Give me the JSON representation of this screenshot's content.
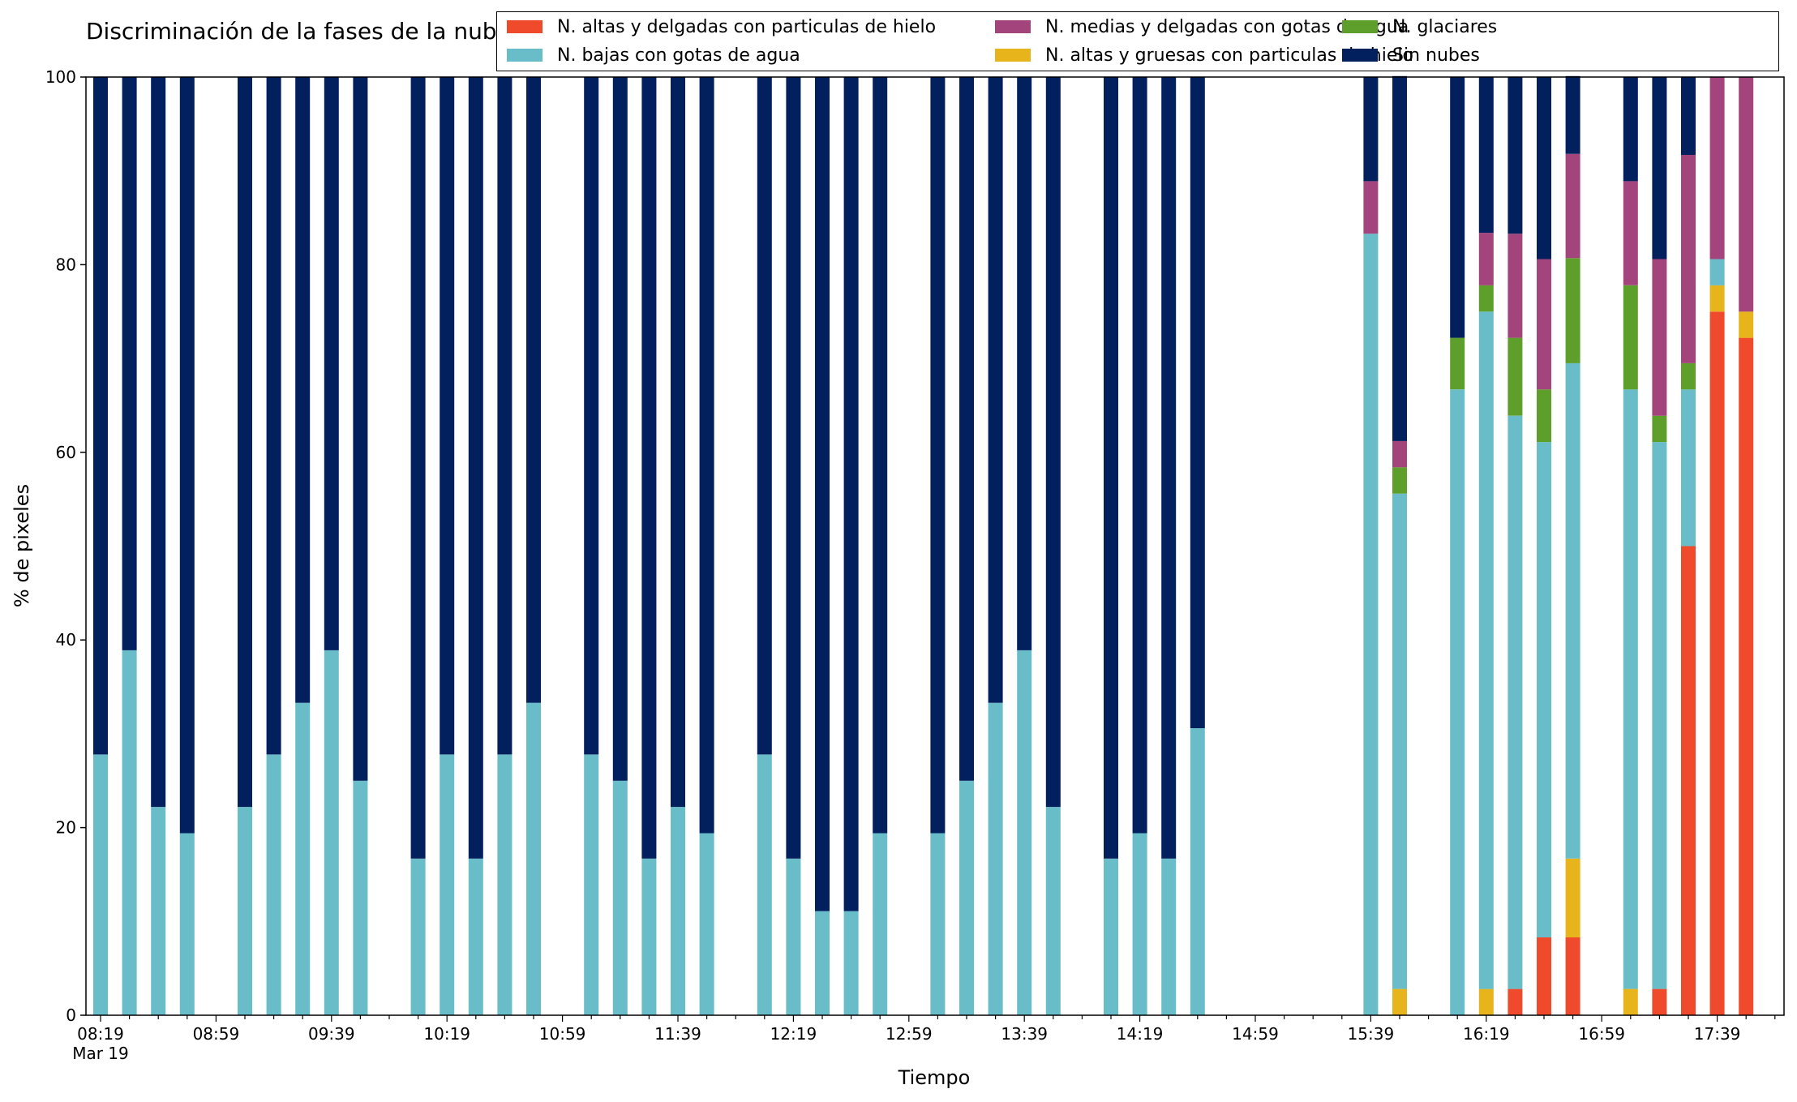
{
  "chart_data": {
    "type": "bar",
    "stacked": true,
    "title": "Discriminación de la fases de la nube en Bello",
    "xlabel": "Tiempo",
    "ylabel": "% de pixeles",
    "ylim": [
      0,
      100
    ],
    "yticks": [
      "0",
      "20",
      "40",
      "60",
      "80",
      "100"
    ],
    "xtick_labels": [
      "08:19",
      "08:59",
      "09:39",
      "10:19",
      "10:59",
      "11:39",
      "12:19",
      "12:59",
      "13:39",
      "14:19",
      "14:59",
      "15:39",
      "16:19",
      "16:59",
      "17:39"
    ],
    "x_date_label": "Mar 19",
    "x_interval_minutes": 10,
    "times": [
      "08:19",
      "08:29",
      "08:39",
      "08:49",
      "08:59",
      "09:09",
      "09:19",
      "09:29",
      "09:39",
      "09:49",
      "09:59",
      "10:09",
      "10:19",
      "10:29",
      "10:39",
      "10:49",
      "10:59",
      "11:09",
      "11:19",
      "11:29",
      "11:39",
      "11:49",
      "11:59",
      "12:09",
      "12:19",
      "12:29",
      "12:39",
      "12:49",
      "12:59",
      "13:09",
      "13:19",
      "13:29",
      "13:39",
      "13:49",
      "13:59",
      "14:09",
      "14:19",
      "14:29",
      "14:39",
      "14:49",
      "14:59",
      "15:09",
      "15:19",
      "15:29",
      "15:39",
      "15:49",
      "15:59",
      "16:09",
      "16:19",
      "16:29",
      "16:39",
      "16:49",
      "16:59",
      "17:09",
      "17:19",
      "17:29",
      "17:39",
      "17:49",
      "17:59"
    ],
    "legend_position": "top-right",
    "series": [
      {
        "name": "N. altas y delgadas con particulas de hielo",
        "color": "#ee4a2b",
        "values": [
          0,
          0,
          0,
          0,
          null,
          0,
          0,
          0,
          0,
          0,
          null,
          0,
          0,
          0,
          0,
          0,
          null,
          0,
          0,
          0,
          0,
          0,
          null,
          0,
          0,
          0,
          0,
          0,
          null,
          0,
          0,
          0,
          0,
          0,
          null,
          0,
          0,
          0,
          0,
          null,
          null,
          null,
          null,
          null,
          0,
          0,
          null,
          0,
          0,
          2.8,
          8.3,
          8.3,
          null,
          0,
          2.8,
          50,
          75,
          72.2,
          null
        ]
      },
      {
        "name": "N. altas y gruesas con particulas de hielo",
        "color": "#e7b41b",
        "values": [
          0,
          0,
          0,
          0,
          null,
          0,
          0,
          0,
          0,
          0,
          null,
          0,
          0,
          0,
          0,
          0,
          null,
          0,
          0,
          0,
          0,
          0,
          null,
          0,
          0,
          0,
          0,
          0,
          null,
          0,
          0,
          0,
          0,
          0,
          null,
          0,
          0,
          0,
          0,
          null,
          null,
          null,
          null,
          null,
          0,
          2.8,
          null,
          0,
          2.8,
          0,
          0,
          8.4,
          null,
          2.8,
          0,
          0,
          2.8,
          2.8,
          null
        ]
      },
      {
        "name": "N. bajas con gotas de agua",
        "color": "#68bdc9",
        "values": [
          27.8,
          38.9,
          22.2,
          19.4,
          null,
          22.2,
          27.8,
          33.3,
          38.9,
          25,
          null,
          16.7,
          27.8,
          16.7,
          27.8,
          33.3,
          null,
          27.8,
          25,
          16.7,
          22.2,
          19.4,
          null,
          27.8,
          16.7,
          11.1,
          11.1,
          19.4,
          null,
          19.4,
          25,
          33.3,
          38.9,
          22.2,
          null,
          16.7,
          19.4,
          16.7,
          30.6,
          null,
          null,
          null,
          null,
          null,
          83.3,
          52.8,
          null,
          66.7,
          72.2,
          61.1,
          52.8,
          52.8,
          null,
          63.9,
          58.3,
          16.7,
          2.8,
          0,
          null
        ]
      },
      {
        "name": "N. glaciares",
        "color": "#5e9e2b",
        "values": [
          0,
          0,
          0,
          0,
          null,
          0,
          0,
          0,
          0,
          0,
          null,
          0,
          0,
          0,
          0,
          0,
          null,
          0,
          0,
          0,
          0,
          0,
          null,
          0,
          0,
          0,
          0,
          0,
          null,
          0,
          0,
          0,
          0,
          0,
          null,
          0,
          0,
          0,
          0,
          null,
          null,
          null,
          null,
          null,
          0,
          2.8,
          null,
          5.5,
          2.8,
          8.3,
          5.6,
          11.2,
          null,
          11.1,
          2.8,
          2.8,
          0,
          0,
          null
        ]
      },
      {
        "name": "N. medias y delgadas con gotas de agua",
        "color": "#a3457c",
        "values": [
          0,
          0,
          0,
          0,
          null,
          0,
          0,
          0,
          0,
          0,
          null,
          0,
          0,
          0,
          0,
          0,
          null,
          0,
          0,
          0,
          0,
          0,
          null,
          0,
          0,
          0,
          0,
          0,
          null,
          0,
          0,
          0,
          0,
          0,
          null,
          0,
          0,
          0,
          0,
          null,
          null,
          null,
          null,
          null,
          5.6,
          2.8,
          null,
          0,
          5.6,
          11.1,
          13.9,
          11.1,
          null,
          11.1,
          16.7,
          22.2,
          19.4,
          25,
          null
        ]
      },
      {
        "name": "Sin nubes",
        "color": "#021f5e",
        "values": [
          72.2,
          61.1,
          77.8,
          80.6,
          null,
          77.8,
          72.2,
          66.7,
          61.1,
          75,
          null,
          83.3,
          72.2,
          83.3,
          72.2,
          66.7,
          null,
          72.2,
          75,
          83.3,
          77.8,
          80.6,
          null,
          72.2,
          83.3,
          88.9,
          88.9,
          80.6,
          null,
          80.6,
          75,
          66.7,
          61.1,
          77.8,
          null,
          83.3,
          80.6,
          83.3,
          69.4,
          null,
          null,
          null,
          null,
          null,
          11.1,
          38.9,
          null,
          27.8,
          16.6,
          16.7,
          19.4,
          8.3,
          null,
          11.1,
          19.4,
          8.3,
          0,
          0,
          null
        ]
      }
    ]
  }
}
